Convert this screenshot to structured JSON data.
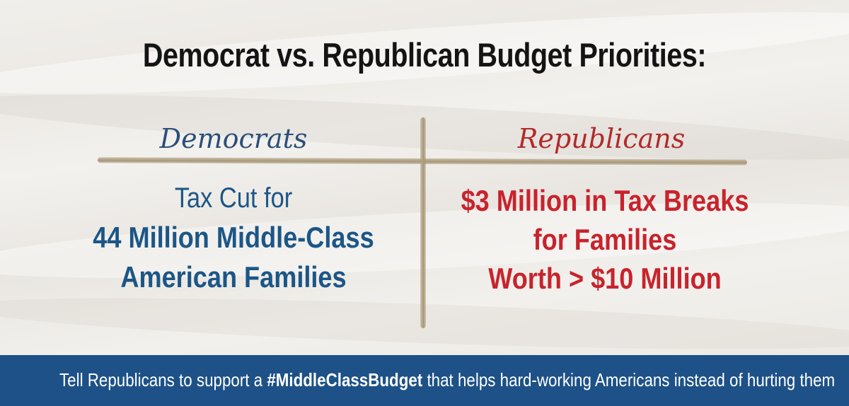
{
  "headline": "Democrat vs. Republican Budget Priorities:",
  "columns": {
    "democrats": {
      "heading": "Democrats",
      "line1": "Tax Cut for",
      "line2": "44 Million Middle-Class",
      "line3": "American Families"
    },
    "republicans": {
      "heading": "Republicans",
      "line1": "$3 Million in Tax Breaks",
      "line2": "for Families",
      "line3": "Worth > $10 Million"
    }
  },
  "footer": {
    "before": "Tell Republicans to support a ",
    "hashtag": "#MiddleClassBudget",
    "after": " that helps hard-working Americans instead of hurting them"
  },
  "colors": {
    "democrat_blue": "#1c5687",
    "republican_red": "#c8232c",
    "footer_bg": "#1d5187",
    "divider_tan": "#b3a385"
  }
}
